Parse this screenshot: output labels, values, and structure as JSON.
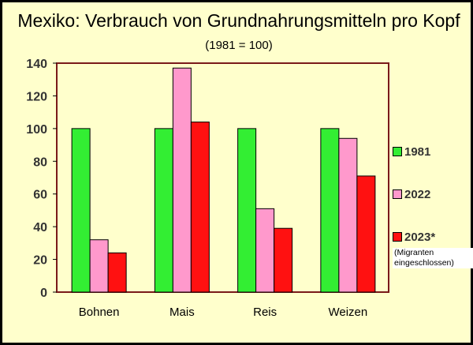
{
  "chart_data": {
    "type": "bar",
    "title": "Mexiko: Verbrauch von Grundnahrungsmitteln pro Kopf",
    "subtitle": "(1981 = 100)",
    "categories": [
      "Bohnen",
      "Mais",
      "Reis",
      "Weizen"
    ],
    "series": [
      {
        "name": "1981",
        "color": "#33ee33",
        "values": [
          100,
          100,
          100,
          100
        ]
      },
      {
        "name": "2022",
        "color": "#ff99cc",
        "values": [
          32,
          137,
          51,
          94
        ]
      },
      {
        "name": "2023*",
        "color": "#ff1111",
        "values": [
          24,
          104,
          39,
          71
        ]
      }
    ],
    "ylim": [
      0,
      140
    ],
    "yticks": [
      0,
      20,
      40,
      60,
      80,
      100,
      120,
      140
    ],
    "grid": false,
    "legend": "right",
    "legend_note": "(Migranten eingeschlossen)",
    "colors": {
      "background": "#ffffcc",
      "plot_border": "#7a1a1a",
      "axis_text": "#333333"
    }
  }
}
